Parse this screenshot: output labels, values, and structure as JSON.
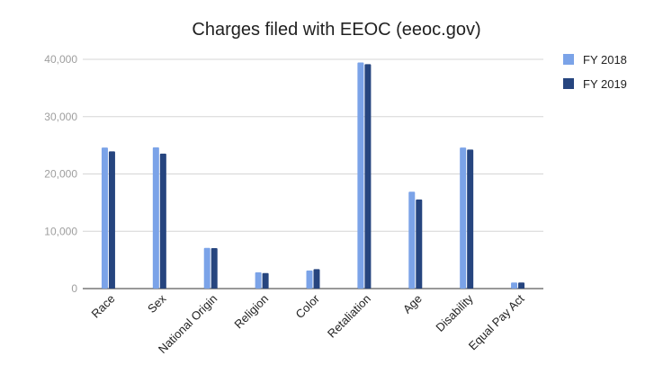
{
  "chart_data": {
    "type": "bar",
    "title": "Charges filed with EEOC (eeoc.gov)",
    "xlabel": "",
    "ylabel": "",
    "categories": [
      "Race",
      "Sex",
      "National Origin",
      "Religion",
      "Color",
      "Retaliation",
      "Age",
      "Disability",
      "Equal Pay Act"
    ],
    "series": [
      {
        "name": "FY 2018",
        "color": "#7ba3e8",
        "values": [
          24600,
          24650,
          7100,
          2850,
          3150,
          39450,
          16900,
          24600,
          1050
        ]
      },
      {
        "name": "FY 2019",
        "color": "#26457f",
        "values": [
          23950,
          23550,
          7050,
          2700,
          3400,
          39150,
          15550,
          24250,
          1050
        ]
      }
    ],
    "yticks": [
      0,
      10000,
      20000,
      30000,
      40000
    ],
    "ytick_labels": [
      "0",
      "10,000",
      "20,000",
      "30,000",
      "40,000"
    ],
    "ylim": [
      0,
      40000
    ],
    "grid": true,
    "legend_position": "right"
  }
}
